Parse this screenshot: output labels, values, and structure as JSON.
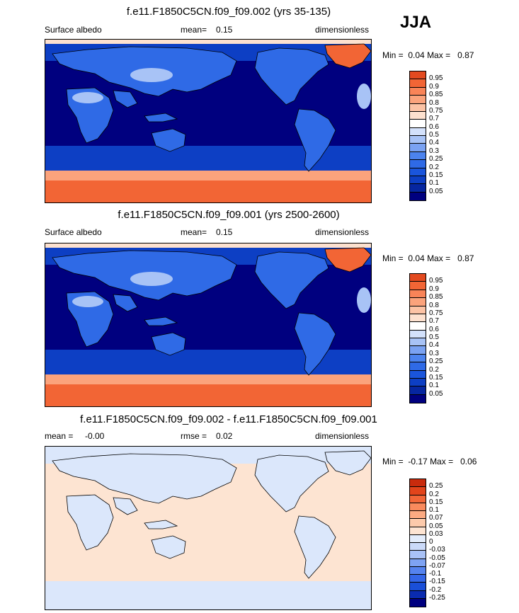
{
  "season": "JJA",
  "colors": {
    "abs_scale": [
      "#00007f",
      "#0626a0",
      "#0d3fc4",
      "#1a55dc",
      "#2f6ae6",
      "#4c83ee",
      "#7aa2f2",
      "#a8c3f6",
      "#d3e1fb",
      "#ffffff",
      "#fde1cf",
      "#fcc3a5",
      "#fba37c",
      "#f98458",
      "#f26535",
      "#e34a1f",
      "#ce3313",
      "#b41e0b",
      "#8f0b05",
      "#6b0000"
    ],
    "diff_scale": [
      "#00007f",
      "#0a2bb0",
      "#1a4fd8",
      "#3466e8",
      "#5583ef",
      "#7ea3f3",
      "#a9c2f7",
      "#cbdaf9",
      "#e3ecfb",
      "#fde4d2",
      "#fccaab",
      "#fbaa82",
      "#f98a5d",
      "#f26638",
      "#e2441b",
      "#c92b0d",
      "#a81408",
      "#7f0000"
    ],
    "ocean_deep": "#00007f",
    "ocean_mid": "#0d3fc4",
    "land_blue": "#2f6ae6",
    "desert": "#a8c3f6",
    "ice": "#f26535",
    "seaice": "#fba37c",
    "diff_bg": "#fde4d2",
    "diff_pale": "#dbe7fb"
  },
  "chart_data": [
    {
      "type": "heatmap",
      "title": "f.e11.F1850C5CN.f09_f09.002 (yrs 35-135)",
      "left_label": "Surface albedo",
      "mean_label": "mean=",
      "mean_value": "0.15",
      "units": "dimensionless",
      "min_label": "Min =",
      "min_value": "0.04",
      "max_label": "Max =",
      "max_value": "0.87",
      "levels": [
        "0.95",
        "0.9",
        "0.85",
        "0.8",
        "0.75",
        "0.7",
        "0.6",
        "0.5",
        "0.4",
        "0.3",
        "0.25",
        "0.2",
        "0.15",
        "0.1",
        "0.05"
      ]
    },
    {
      "type": "heatmap",
      "title": "f.e11.F1850C5CN.f09_f09.001 (yrs 2500-2600)",
      "left_label": "Surface albedo",
      "mean_label": "mean=",
      "mean_value": "0.15",
      "units": "dimensionless",
      "min_label": "Min =",
      "min_value": "0.04",
      "max_label": "Max =",
      "max_value": "0.87",
      "levels": [
        "0.95",
        "0.9",
        "0.85",
        "0.8",
        "0.75",
        "0.7",
        "0.6",
        "0.5",
        "0.4",
        "0.3",
        "0.25",
        "0.2",
        "0.15",
        "0.1",
        "0.05"
      ]
    },
    {
      "type": "heatmap",
      "title": "f.e11.F1850C5CN.f09_f09.002 - f.e11.F1850C5CN.f09_f09.001",
      "left_label": "mean =",
      "mean_label": "",
      "mean_value": "-0.00",
      "rmse_label": "rmse =",
      "rmse_value": "0.02",
      "units": "dimensionless",
      "min_label": "Min =",
      "min_value": "-0.17",
      "max_label": "Max =",
      "max_value": "0.06",
      "levels": [
        "0.25",
        "0.2",
        "0.15",
        "0.1",
        "0.07",
        "0.05",
        "0.03",
        "0",
        "-0.03",
        "-0.05",
        "-0.07",
        "-0.1",
        "-0.15",
        "-0.2",
        "-0.25"
      ]
    }
  ]
}
